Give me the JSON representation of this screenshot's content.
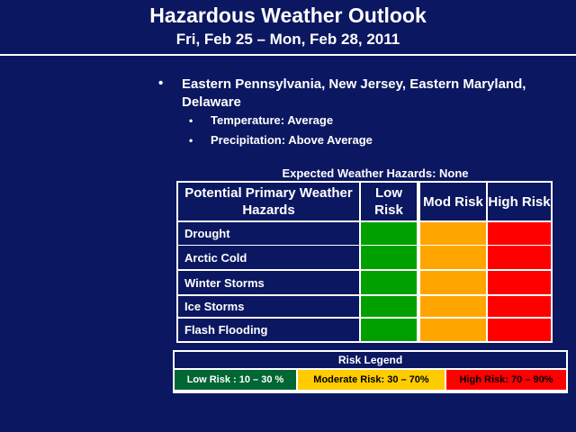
{
  "header": {
    "title": "Hazardous Weather Outlook",
    "subtitle": "Fri, Feb 25 – Mon, Feb 28, 2011"
  },
  "outline": {
    "region": "Eastern Pennsylvania, New Jersey, Eastern Maryland, Delaware",
    "details": [
      "Temperature: Average",
      "Precipitation: Above Average"
    ]
  },
  "table": {
    "caption": "Expected Weather Hazards: None",
    "columns": [
      "Potential Primary Weather Hazards",
      "Low Risk",
      "Mod Risk",
      "High Risk"
    ],
    "rows": [
      "Drought",
      "Arctic Cold",
      "Winter Storms",
      "Ice Storms",
      "Flash Flooding"
    ]
  },
  "legend": {
    "title": "Risk Legend",
    "items": [
      "Low Risk : 10 – 30 %",
      "Moderate Risk: 30 – 70%",
      "High Risk: 70 – 90%"
    ]
  }
}
